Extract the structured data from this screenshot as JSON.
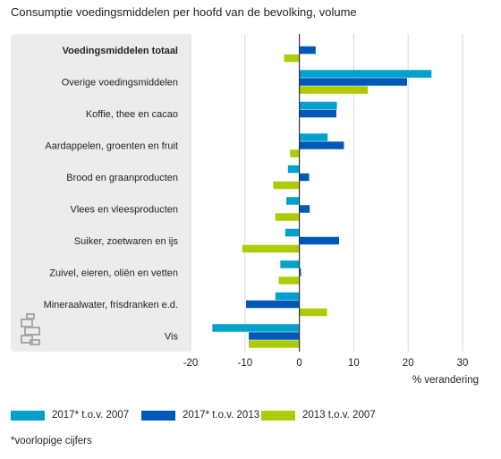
{
  "chart_data": {
    "type": "bar",
    "orientation": "horizontal",
    "title": "Consumptie voedingsmiddelen per hoofd van de bevolking, volume",
    "xlabel": "% verandering",
    "xlim": [
      -20,
      30
    ],
    "xticks": [
      -20,
      -10,
      0,
      10,
      20,
      30
    ],
    "categories": [
      "Voedingsmiddelen totaal",
      "Overige voedingsmiddelen",
      "Koffie, thee en cacao",
      "Aardappelen, groenten en fruit",
      "Brood en graanproducten",
      "Vlees en vleesproducten",
      "Suiker, zoetwaren en ijs",
      "Zuivel, eieren, oliën en vetten",
      "Mineraalwater, frisdranken e.d.",
      "Vis"
    ],
    "bold_categories": [
      "Voedingsmiddelen totaal"
    ],
    "series": [
      {
        "name": "2017* t.o.v. 2007",
        "color": "#00a1cd",
        "values": [
          null,
          24.3,
          6.9,
          5.2,
          -2.1,
          -2.4,
          -2.6,
          -3.5,
          -4.4,
          -16
        ]
      },
      {
        "name": "2017* t.o.v. 2013",
        "color": "#0058b8",
        "values": [
          3.0,
          19.8,
          6.8,
          8.2,
          1.8,
          1.9,
          7.3,
          0.3,
          -9.8,
          -9.3
        ]
      },
      {
        "name": "2013 t.o.v. 2007",
        "color": "#afcb05",
        "values": [
          -2.8,
          12.6,
          null,
          -1.7,
          -4.8,
          -4.4,
          -10.5,
          -3.8,
          5.1,
          -9.3
        ]
      }
    ],
    "grid": "vertical",
    "legend": "bottom"
  },
  "footnote": "*voorlopige cijfers",
  "logo_icon": "cbs-logo-icon"
}
